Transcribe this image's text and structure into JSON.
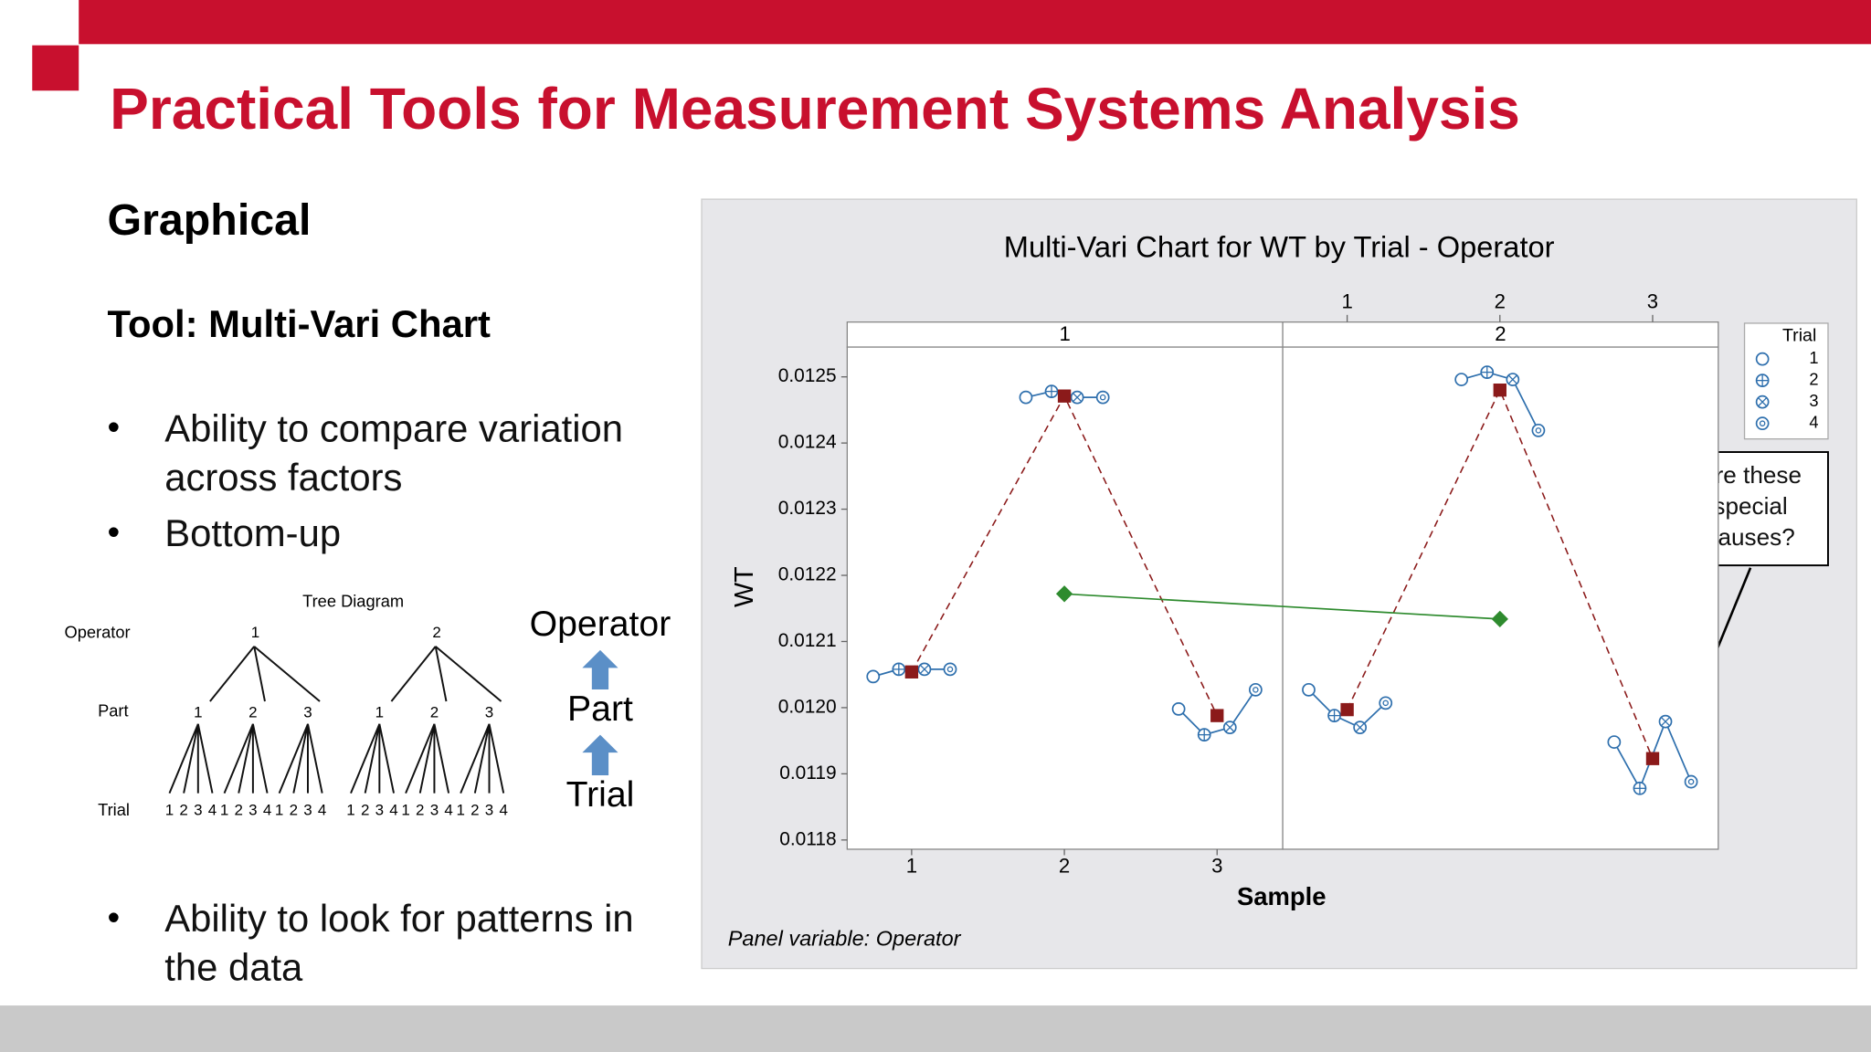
{
  "header": {
    "title": "Practical Tools for Measurement Systems Analysis"
  },
  "left": {
    "heading": "Graphical",
    "tool": "Tool: Multi-Vari Chart",
    "bullets": [
      "Ability to compare variation across factors",
      "Bottom-up"
    ],
    "bullets_bottom": [
      "Ability to look for patterns in the data"
    ]
  },
  "tree_diagram": {
    "title": "Tree Diagram",
    "levels": [
      "Operator",
      "Part",
      "Trial"
    ],
    "operators": [
      "1",
      "2"
    ],
    "parts": [
      "1",
      "2",
      "3"
    ],
    "trials": [
      "1",
      "2",
      "3",
      "4"
    ]
  },
  "hierarchy": [
    "Operator",
    "Part",
    "Trial"
  ],
  "chart_data": {
    "type": "multi-vari",
    "title": "Multi-Vari Chart for WT by Trial - Operator",
    "xlabel": "Sample",
    "ylabel": "WT",
    "panel_note": "Panel variable: Operator",
    "legend_title": "Trial",
    "trials": [
      "1",
      "2",
      "3",
      "4"
    ],
    "categories": [
      "1",
      "2",
      "3"
    ],
    "top_categories": [
      "1",
      "2",
      "3"
    ],
    "ylim": [
      0.011786,
      0.012545
    ],
    "yticks": [
      0.0118,
      0.0119,
      {
        "value": 0.012,
        "label": "0.0120"
      },
      0.0121,
      0.0122,
      0.0123,
      0.0124,
      0.0125
    ],
    "point_color": "#2e6fad",
    "mean_color": "#8b1a1a",
    "operator_mean_color": "#2e8b2e",
    "panels": [
      {
        "label": "1",
        "values": [
          [
            0.012047,
            0.012058,
            0.012058,
            0.012058
          ],
          [
            0.012469,
            0.012478,
            0.012469,
            0.012469
          ],
          [
            0.011998,
            0.011959,
            0.01197,
            0.012027
          ]
        ],
        "means": [
          0.012054,
          0.012471,
          0.011988
        ],
        "operator_mean": 0.012172
      },
      {
        "label": "2",
        "values": [
          [
            0.012027,
            0.011988,
            0.01197,
            0.012007
          ],
          [
            0.012496,
            0.012507,
            0.012496,
            0.012419
          ],
          [
            0.011948,
            0.011878,
            0.011979,
            0.011888
          ]
        ],
        "means": [
          0.011997,
          0.01248,
          0.011923
        ],
        "operator_mean": 0.012134
      }
    ],
    "annotation": "Are these special causes?"
  }
}
